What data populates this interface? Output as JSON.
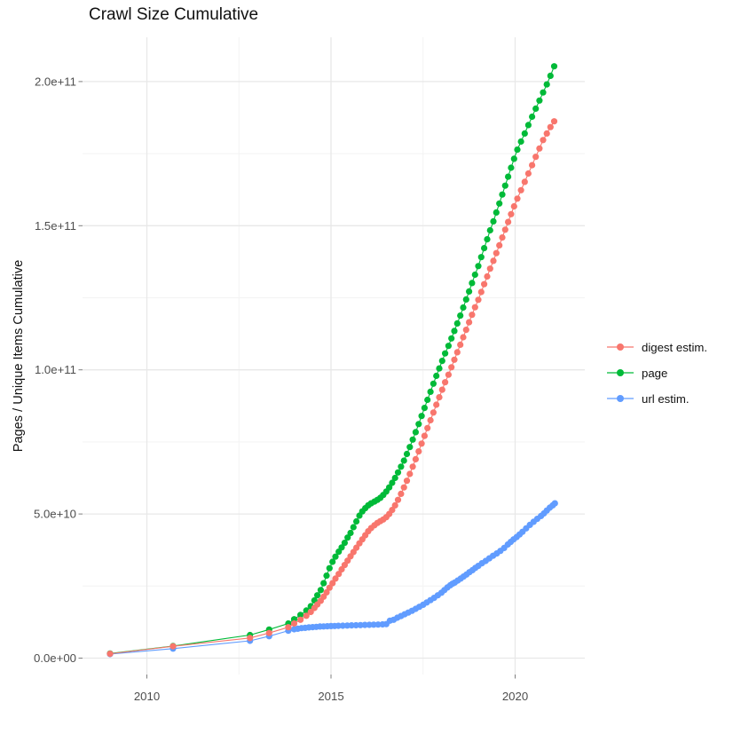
{
  "chart_data": {
    "type": "line",
    "marker": "point",
    "title": "Crawl Size Cumulative",
    "xlabel": "",
    "ylabel": "Pages / Unique Items Cumulative",
    "x_ticks": [
      2010,
      2015,
      2020
    ],
    "x_tick_labels": [
      "2010",
      "2015",
      "2020"
    ],
    "x_minor_gridlines": [
      2012.5,
      2017.5
    ],
    "y_ticks_billions": [
      0,
      50,
      100,
      150,
      200
    ],
    "y_tick_labels": [
      "0.0e+00",
      "5.0e+10",
      "1.0e+11",
      "1.5e+11",
      "2.0e+11"
    ],
    "y_minor_gridlines_billions": [
      25,
      75,
      125,
      175
    ],
    "x_range": [
      2008.25,
      2021.9
    ],
    "y_range_billions": [
      -5,
      215
    ],
    "values_unit_multiplier": 1000000000.0,
    "grid": true,
    "legend_position": "right",
    "z_draw_order": [
      1,
      2,
      0
    ],
    "series": [
      {
        "name": "digest estim.",
        "color": "#F8766D",
        "points": [
          [
            2009.0,
            1.5
          ],
          [
            2010.71,
            4.1
          ],
          [
            2012.8,
            7.0
          ],
          [
            2013.32,
            8.7
          ],
          [
            2013.84,
            10.7
          ],
          [
            2014.0,
            12.0
          ],
          [
            2014.17,
            13.3
          ],
          [
            2014.33,
            14.7
          ],
          [
            2014.45,
            16.0
          ],
          [
            2014.55,
            17.4
          ],
          [
            2014.63,
            18.6
          ],
          [
            2014.72,
            19.9
          ],
          [
            2014.8,
            21.3
          ],
          [
            2014.88,
            22.8
          ],
          [
            2014.96,
            24.4
          ],
          [
            2015.04,
            26.0
          ],
          [
            2015.12,
            27.6
          ],
          [
            2015.21,
            29.2
          ],
          [
            2015.29,
            30.8
          ],
          [
            2015.37,
            32.3
          ],
          [
            2015.45,
            33.8
          ],
          [
            2015.53,
            35.3
          ],
          [
            2015.61,
            36.8
          ],
          [
            2015.69,
            38.3
          ],
          [
            2015.77,
            39.8
          ],
          [
            2015.85,
            41.2
          ],
          [
            2015.93,
            42.6
          ],
          [
            2016.01,
            44.0
          ],
          [
            2016.09,
            45.1
          ],
          [
            2016.18,
            46.1
          ],
          [
            2016.26,
            46.9
          ],
          [
            2016.34,
            47.5
          ],
          [
            2016.42,
            48.1
          ],
          [
            2016.5,
            48.9
          ],
          [
            2016.58,
            50.0
          ],
          [
            2016.66,
            51.4
          ],
          [
            2016.74,
            53.0
          ],
          [
            2016.82,
            54.9
          ],
          [
            2016.9,
            57.0
          ],
          [
            2016.98,
            59.2
          ],
          [
            2017.06,
            61.5
          ],
          [
            2017.14,
            63.9
          ],
          [
            2017.22,
            66.4
          ],
          [
            2017.3,
            69.0
          ],
          [
            2017.38,
            71.7
          ],
          [
            2017.46,
            74.4
          ],
          [
            2017.54,
            77.1
          ],
          [
            2017.62,
            79.8
          ],
          [
            2017.7,
            82.5
          ],
          [
            2017.78,
            85.2
          ],
          [
            2017.86,
            87.9
          ],
          [
            2017.94,
            90.5
          ],
          [
            2018.02,
            93.1
          ],
          [
            2018.1,
            95.7
          ],
          [
            2018.19,
            98.3
          ],
          [
            2018.27,
            100.9
          ],
          [
            2018.35,
            103.5
          ],
          [
            2018.43,
            106.1
          ],
          [
            2018.51,
            108.7
          ],
          [
            2018.59,
            111.3
          ],
          [
            2018.67,
            113.9
          ],
          [
            2018.75,
            116.5
          ],
          [
            2018.83,
            119.1
          ],
          [
            2018.91,
            121.7
          ],
          [
            2019.0,
            124.3
          ],
          [
            2019.08,
            127.0
          ],
          [
            2019.16,
            129.7
          ],
          [
            2019.24,
            132.4
          ],
          [
            2019.32,
            135.1
          ],
          [
            2019.41,
            137.8
          ],
          [
            2019.49,
            140.5
          ],
          [
            2019.57,
            143.2
          ],
          [
            2019.65,
            145.9
          ],
          [
            2019.73,
            148.6
          ],
          [
            2019.81,
            151.3
          ],
          [
            2019.89,
            154.0
          ],
          [
            2019.97,
            156.7
          ],
          [
            2020.06,
            159.4
          ],
          [
            2020.16,
            162.3
          ],
          [
            2020.26,
            165.2
          ],
          [
            2020.36,
            168.1
          ],
          [
            2020.46,
            171.0
          ],
          [
            2020.56,
            173.9
          ],
          [
            2020.66,
            176.8
          ],
          [
            2020.76,
            179.7
          ],
          [
            2020.86,
            182.0
          ],
          [
            2020.96,
            184.2
          ],
          [
            2021.06,
            186.2
          ]
        ]
      },
      {
        "name": "page",
        "color": "#00BA38",
        "points": [
          [
            2009.0,
            1.6
          ],
          [
            2010.71,
            4.2
          ],
          [
            2012.8,
            8.0
          ],
          [
            2013.32,
            9.9
          ],
          [
            2013.84,
            12.0
          ],
          [
            2014.0,
            13.5
          ],
          [
            2014.17,
            15.0
          ],
          [
            2014.33,
            16.5
          ],
          [
            2014.45,
            18.0
          ],
          [
            2014.55,
            20.0
          ],
          [
            2014.63,
            21.8
          ],
          [
            2014.72,
            23.6
          ],
          [
            2014.8,
            26.0
          ],
          [
            2014.88,
            28.6
          ],
          [
            2014.96,
            31.2
          ],
          [
            2015.04,
            33.4
          ],
          [
            2015.12,
            35.2
          ],
          [
            2015.21,
            36.9
          ],
          [
            2015.29,
            38.4
          ],
          [
            2015.37,
            40.0
          ],
          [
            2015.45,
            41.8
          ],
          [
            2015.53,
            43.4
          ],
          [
            2015.61,
            45.4
          ],
          [
            2015.69,
            47.4
          ],
          [
            2015.77,
            49.4
          ],
          [
            2015.85,
            50.9
          ],
          [
            2015.93,
            52.0
          ],
          [
            2016.01,
            53.0
          ],
          [
            2016.09,
            53.7
          ],
          [
            2016.18,
            54.3
          ],
          [
            2016.26,
            54.9
          ],
          [
            2016.34,
            55.6
          ],
          [
            2016.42,
            56.6
          ],
          [
            2016.5,
            57.8
          ],
          [
            2016.58,
            59.2
          ],
          [
            2016.66,
            60.8
          ],
          [
            2016.74,
            62.5
          ],
          [
            2016.82,
            64.4
          ],
          [
            2016.9,
            66.4
          ],
          [
            2016.98,
            68.5
          ],
          [
            2017.06,
            70.8
          ],
          [
            2017.14,
            73.2
          ],
          [
            2017.22,
            75.8
          ],
          [
            2017.3,
            78.4
          ],
          [
            2017.38,
            81.2
          ],
          [
            2017.46,
            84.0
          ],
          [
            2017.54,
            86.8
          ],
          [
            2017.62,
            89.6
          ],
          [
            2017.7,
            92.4
          ],
          [
            2017.78,
            95.2
          ],
          [
            2017.86,
            97.9
          ],
          [
            2017.94,
            100.5
          ],
          [
            2018.02,
            103.1
          ],
          [
            2018.1,
            105.7
          ],
          [
            2018.19,
            108.3
          ],
          [
            2018.27,
            110.9
          ],
          [
            2018.35,
            113.5
          ],
          [
            2018.43,
            116.1
          ],
          [
            2018.51,
            118.8
          ],
          [
            2018.59,
            121.6
          ],
          [
            2018.67,
            124.4
          ],
          [
            2018.75,
            127.2
          ],
          [
            2018.83,
            130.1
          ],
          [
            2018.91,
            133.0
          ],
          [
            2019.0,
            136.0
          ],
          [
            2019.08,
            139.1
          ],
          [
            2019.16,
            142.2
          ],
          [
            2019.24,
            145.3
          ],
          [
            2019.32,
            148.4
          ],
          [
            2019.41,
            151.5
          ],
          [
            2019.49,
            154.6
          ],
          [
            2019.57,
            157.7
          ],
          [
            2019.65,
            160.8
          ],
          [
            2019.73,
            163.9
          ],
          [
            2019.81,
            167.0
          ],
          [
            2019.89,
            170.1
          ],
          [
            2019.97,
            173.2
          ],
          [
            2020.06,
            176.4
          ],
          [
            2020.16,
            179.2
          ],
          [
            2020.26,
            182.0
          ],
          [
            2020.36,
            184.9
          ],
          [
            2020.46,
            187.8
          ],
          [
            2020.56,
            190.6
          ],
          [
            2020.66,
            193.4
          ],
          [
            2020.76,
            196.2
          ],
          [
            2020.86,
            199.0
          ],
          [
            2020.96,
            202.0
          ],
          [
            2021.06,
            205.3
          ]
        ]
      },
      {
        "name": "url estim.",
        "color": "#619CFF",
        "points": [
          [
            2009.0,
            1.4
          ],
          [
            2010.71,
            3.3
          ],
          [
            2012.8,
            6.0
          ],
          [
            2013.32,
            7.6
          ],
          [
            2013.84,
            9.5
          ],
          [
            2014.0,
            10.0
          ],
          [
            2014.1,
            10.2
          ],
          [
            2014.2,
            10.4
          ],
          [
            2014.3,
            10.5
          ],
          [
            2014.4,
            10.65
          ],
          [
            2014.5,
            10.75
          ],
          [
            2014.6,
            10.85
          ],
          [
            2014.7,
            10.95
          ],
          [
            2014.8,
            11.0
          ],
          [
            2014.9,
            11.05
          ],
          [
            2015.0,
            11.1
          ],
          [
            2015.1,
            11.15
          ],
          [
            2015.2,
            11.2
          ],
          [
            2015.32,
            11.25
          ],
          [
            2015.44,
            11.3
          ],
          [
            2015.56,
            11.35
          ],
          [
            2015.68,
            11.4
          ],
          [
            2015.8,
            11.45
          ],
          [
            2015.92,
            11.5
          ],
          [
            2016.04,
            11.55
          ],
          [
            2016.16,
            11.6
          ],
          [
            2016.28,
            11.65
          ],
          [
            2016.4,
            11.7
          ],
          [
            2016.5,
            11.8
          ],
          [
            2016.6,
            13.0
          ],
          [
            2016.7,
            13.3
          ],
          [
            2016.8,
            14.0
          ],
          [
            2016.9,
            14.6
          ],
          [
            2017.0,
            15.2
          ],
          [
            2017.1,
            15.8
          ],
          [
            2017.2,
            16.4
          ],
          [
            2017.3,
            17.1
          ],
          [
            2017.4,
            17.8
          ],
          [
            2017.5,
            18.5
          ],
          [
            2017.6,
            19.3
          ],
          [
            2017.7,
            20.1
          ],
          [
            2017.8,
            20.9
          ],
          [
            2017.9,
            21.8
          ],
          [
            2018.0,
            22.7
          ],
          [
            2018.08,
            23.6
          ],
          [
            2018.16,
            24.5
          ],
          [
            2018.24,
            25.3
          ],
          [
            2018.3,
            25.8
          ],
          [
            2018.36,
            26.2
          ],
          [
            2018.44,
            26.9
          ],
          [
            2018.52,
            27.6
          ],
          [
            2018.6,
            28.3
          ],
          [
            2018.68,
            29.0
          ],
          [
            2018.76,
            29.8
          ],
          [
            2018.84,
            30.5
          ],
          [
            2018.92,
            31.3
          ],
          [
            2019.0,
            32.0
          ],
          [
            2019.1,
            32.9
          ],
          [
            2019.2,
            33.7
          ],
          [
            2019.3,
            34.6
          ],
          [
            2019.4,
            35.5
          ],
          [
            2019.5,
            36.3
          ],
          [
            2019.6,
            37.2
          ],
          [
            2019.7,
            38.2
          ],
          [
            2019.8,
            39.4
          ],
          [
            2019.88,
            40.3
          ],
          [
            2019.96,
            41.2
          ],
          [
            2020.04,
            42.0
          ],
          [
            2020.12,
            42.9
          ],
          [
            2020.2,
            43.8
          ],
          [
            2020.3,
            45.0
          ],
          [
            2020.4,
            46.2
          ],
          [
            2020.5,
            47.3
          ],
          [
            2020.6,
            48.3
          ],
          [
            2020.7,
            49.3
          ],
          [
            2020.78,
            50.2
          ],
          [
            2020.86,
            51.2
          ],
          [
            2020.94,
            52.2
          ],
          [
            2021.02,
            53.0
          ],
          [
            2021.08,
            53.7
          ]
        ]
      }
    ]
  },
  "legend": {
    "items": [
      {
        "label": "digest estim.",
        "color": "#F8766D"
      },
      {
        "label": "page",
        "color": "#00BA38"
      },
      {
        "label": "url estim.",
        "color": "#619CFF"
      }
    ]
  },
  "style": {
    "grid_major_color": "#E8E8E8",
    "grid_minor_color": "#F3F3F3",
    "tick_mark_color": "#7F7F7F",
    "tick_label_color": "#4D4D4D",
    "text_color": "#111111",
    "background": "#FFFFFF"
  }
}
